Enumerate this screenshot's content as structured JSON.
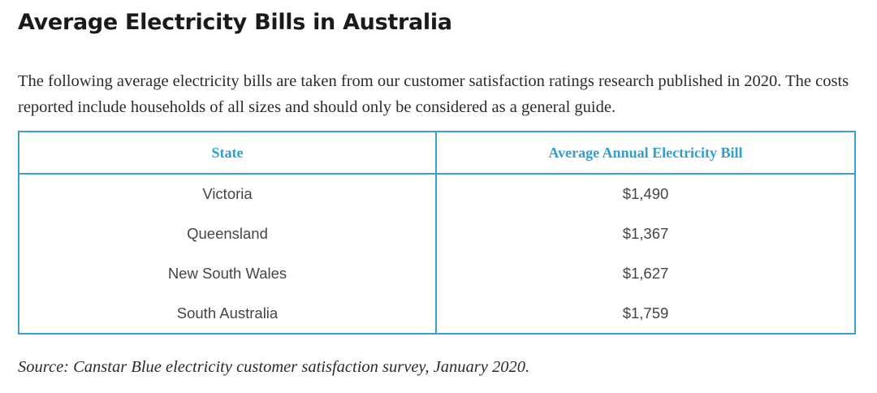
{
  "article": {
    "title": "Average Electricity Bills in Australia",
    "intro": "The following average electricity bills are taken from our customer satisfaction ratings research published in 2020. The costs reported include households of all sizes and should only be considered as a general guide.",
    "source": "Source: Canstar Blue electricity customer satisfaction survey, January 2020."
  },
  "colors": {
    "accent": "#2e9fd1",
    "text": "#2b2b2b"
  },
  "table": {
    "headers": [
      "State",
      "Average Annual Electricity Bill"
    ],
    "rows": [
      [
        "Victoria",
        "$1,490"
      ],
      [
        "Queensland",
        "$1,367"
      ],
      [
        "New South Wales",
        "$1,627"
      ],
      [
        "South Australia",
        "$1,759"
      ]
    ]
  }
}
